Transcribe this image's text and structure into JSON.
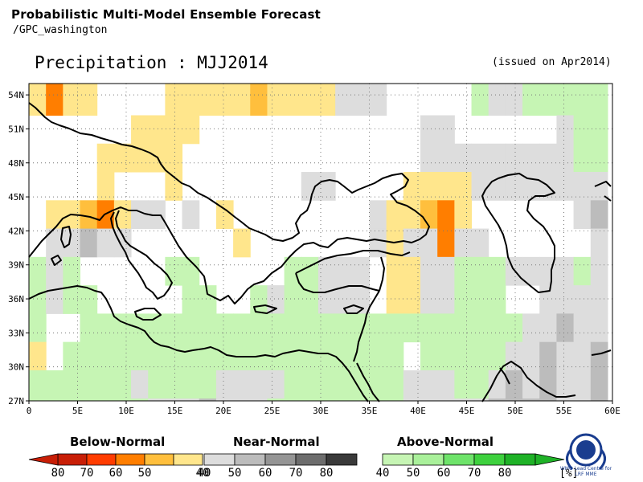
{
  "header": {
    "line1": "Probabilistic Multi-Model Ensemble Forecast",
    "line2": "/GPC_washington"
  },
  "map_title": "Precipitation : MJJ2014",
  "issued": "(issued on Apr2014)",
  "axes": {
    "lat_labels": [
      "54N",
      "51N",
      "48N",
      "45N",
      "42N",
      "39N",
      "36N",
      "33N",
      "30N",
      "27N"
    ],
    "lat_values": [
      54,
      51,
      48,
      45,
      42,
      39,
      36,
      33,
      30,
      27
    ],
    "lon_labels": [
      "0",
      "5E",
      "10E",
      "15E",
      "20E",
      "25E",
      "30E",
      "35E",
      "40E",
      "45E",
      "50E",
      "55E",
      "60E"
    ],
    "lon_values": [
      0,
      5,
      10,
      15,
      20,
      25,
      30,
      35,
      40,
      45,
      50,
      55,
      60
    ],
    "lon_range": [
      0,
      60
    ],
    "lat_range": [
      27,
      55
    ],
    "grid": "dotted"
  },
  "legend": {
    "below": {
      "title": "Below-Normal",
      "ticks": [
        "80",
        "70",
        "60",
        "50",
        "40"
      ],
      "colors": [
        "#c81e06",
        "#ff3c00",
        "#ff7e00",
        "#ffbf3d",
        "#ffe68c"
      ]
    },
    "near": {
      "title": "Near-Normal",
      "ticks": [
        "40",
        "50",
        "60",
        "70",
        "80"
      ],
      "colors": [
        "#dddddd",
        "#bcbcbc",
        "#959595",
        "#6d6d6d",
        "#3a3a3a"
      ]
    },
    "above": {
      "title": "Above-Normal",
      "ticks": [
        "40",
        "50",
        "60",
        "70",
        "80"
      ],
      "colors": [
        "#c6f5b4",
        "#a9f09a",
        "#6ee36a",
        "#3ed13e",
        "#1fb227"
      ],
      "unit": "[%]"
    }
  },
  "logo": {
    "icon": "wmo-emblem-icon",
    "text": [
      "WMO Lead Centre for",
      "LRF MME"
    ]
  },
  "chart_data": {
    "type": "heatmap",
    "title": "Precipitation : MJJ2014",
    "xlabel": "",
    "ylabel": "",
    "cell_size_deg": 2.5,
    "x_start": 0,
    "y_top": 55,
    "legend_codes": {
      "0": "no dominant category",
      "B1": "below 40",
      "B2": "below 50",
      "B3": "below 60",
      "N1": "near 40",
      "N2": "near 50",
      "N3": "near 60",
      "N4": "near 70",
      "N5": "near 80",
      "A1": "above 40"
    },
    "rows": [
      [
        "B1",
        "B3",
        "B1",
        "B1",
        "0",
        "0",
        "0",
        "0",
        "B1",
        "B1",
        "B1",
        "B1",
        "B1",
        "B2",
        "B1",
        "B1",
        "B1",
        "B1",
        "N1",
        "N1",
        "N1",
        "0",
        "0",
        "0",
        "0",
        "0",
        "A1",
        "N1",
        "N1",
        "A1",
        "A1",
        "A1",
        "A1",
        "A1"
      ],
      [
        "0",
        "0",
        "0",
        "0",
        "0",
        "0",
        "B1",
        "B1",
        "B1",
        "B1",
        "0",
        "0",
        "0",
        "0",
        "0",
        "0",
        "0",
        "0",
        "0",
        "0",
        "0",
        "0",
        "0",
        "N1",
        "N1",
        "0",
        "0",
        "0",
        "0",
        "0",
        "0",
        "N1",
        "A1",
        "A1"
      ],
      [
        "0",
        "0",
        "0",
        "0",
        "B1",
        "B1",
        "B1",
        "B1",
        "B1",
        "0",
        "0",
        "0",
        "0",
        "0",
        "0",
        "0",
        "0",
        "0",
        "0",
        "0",
        "0",
        "0",
        "0",
        "N1",
        "N1",
        "N1",
        "N1",
        "N1",
        "N1",
        "N1",
        "N1",
        "N1",
        "A1",
        "A1"
      ],
      [
        "0",
        "0",
        "0",
        "0",
        "B1",
        "0",
        "0",
        "0",
        "B1",
        "0",
        "0",
        "0",
        "0",
        "0",
        "0",
        "0",
        "N1",
        "N1",
        "0",
        "0",
        "0",
        "0",
        "B1",
        "B1",
        "B1",
        "B1",
        "N1",
        "N1",
        "N1",
        "N1",
        "N1",
        "N1",
        "N1",
        "N1"
      ],
      [
        "0",
        "B1",
        "B1",
        "B2",
        "B3",
        "B1",
        "N1",
        "N1",
        "0",
        "N1",
        "0",
        "B1",
        "0",
        "0",
        "0",
        "0",
        "0",
        "0",
        "0",
        "0",
        "N1",
        "B1",
        "B1",
        "B2",
        "B3",
        "B1",
        "0",
        "0",
        "0",
        "0",
        "0",
        "0",
        "N1",
        "N2"
      ],
      [
        "0",
        "N1",
        "N1",
        "N2",
        "N1",
        "N1",
        "0",
        "0",
        "0",
        "0",
        "0",
        "0",
        "B1",
        "0",
        "0",
        "0",
        "0",
        "0",
        "0",
        "0",
        "N1",
        "B1",
        "N1",
        "N1",
        "B3",
        "N1",
        "N1",
        "0",
        "0",
        "0",
        "0",
        "0",
        "0",
        "N1"
      ],
      [
        "A1",
        "N1",
        "A1",
        "0",
        "0",
        "0",
        "0",
        "0",
        "A1",
        "A1",
        "0",
        "0",
        "0",
        "0",
        "0",
        "A1",
        "A1",
        "N1",
        "N1",
        "N1",
        "0",
        "B1",
        "B1",
        "N1",
        "N1",
        "A1",
        "A1",
        "A1",
        "N1",
        "N1",
        "N1",
        "N1",
        "A1",
        "N1"
      ],
      [
        "A1",
        "N1",
        "A1",
        "A1",
        "0",
        "0",
        "0",
        "0",
        "0",
        "A1",
        "A1",
        "0",
        "0",
        "A1",
        "N1",
        "A1",
        "A1",
        "N1",
        "N1",
        "N1",
        "0",
        "B1",
        "B1",
        "N1",
        "N1",
        "A1",
        "A1",
        "A1",
        "0",
        "0",
        "N1",
        "N1",
        "N1",
        "N1"
      ],
      [
        "A1",
        "0",
        "0",
        "A1",
        "A1",
        "A1",
        "A1",
        "A1",
        "A1",
        "A1",
        "A1",
        "A1",
        "A1",
        "A1",
        "A1",
        "A1",
        "A1",
        "A1",
        "A1",
        "A1",
        "A1",
        "A1",
        "A1",
        "A1",
        "A1",
        "A1",
        "A1",
        "A1",
        "A1",
        "N1",
        "N1",
        "N2",
        "N1",
        "N1"
      ],
      [
        "B1",
        "0",
        "A1",
        "A1",
        "A1",
        "A1",
        "A1",
        "A1",
        "A1",
        "A1",
        "A1",
        "A1",
        "A1",
        "A1",
        "A1",
        "A1",
        "A1",
        "A1",
        "A1",
        "A1",
        "A1",
        "A1",
        "0",
        "A1",
        "A1",
        "A1",
        "A1",
        "A1",
        "N1",
        "N1",
        "N2",
        "N1",
        "N1",
        "N2"
      ],
      [
        "A1",
        "A1",
        "A1",
        "A1",
        "A1",
        "A1",
        "N1",
        "A1",
        "A1",
        "A1",
        "A1",
        "N1",
        "N1",
        "N1",
        "N1",
        "A1",
        "A1",
        "A1",
        "A1",
        "A1",
        "A1",
        "A1",
        "N1",
        "N1",
        "N1",
        "A1",
        "A1",
        "N1",
        "N2",
        "N1",
        "N2",
        "N1",
        "N1",
        "N2"
      ],
      [
        "A1",
        "A1",
        "A1",
        "A1",
        "A1",
        "A1",
        "A1",
        "N1",
        "N1",
        "N1",
        "N2",
        "N1",
        "N1",
        "N1",
        "A1",
        "A1",
        "A1",
        "A1",
        "A1",
        "A1",
        "A1",
        "A1",
        "N1",
        "N1",
        "N1",
        "N1",
        "N1",
        "N2",
        "N2",
        "N2",
        "N2",
        "N1",
        "N1",
        "N2"
      ],
      [
        "0",
        "0",
        "A1",
        "A1",
        "A1",
        "A1",
        "N1",
        "N1",
        "N1",
        "N1",
        "N2",
        "N1",
        "N1",
        "N1",
        "A1",
        "A1",
        "A1",
        "A1",
        "A1",
        "A1",
        "A1",
        "A1",
        "A1",
        "A1",
        "A1",
        "N1",
        "N1",
        "N2",
        "N2",
        "N2",
        "N3",
        "N3",
        "N1",
        "N4"
      ],
      [
        "N1",
        "N1",
        "A1",
        "A1",
        "A1",
        "A1",
        "N1",
        "A1",
        "A1",
        "N1",
        "N2",
        "N1",
        "N1",
        "A1",
        "A1",
        "A1",
        "A1",
        "A1",
        "A1",
        "A1",
        "A1",
        "A1",
        "A1",
        "A1",
        "A1",
        "A1",
        "N1",
        "N2",
        "N2",
        "N3",
        "N3",
        "N4",
        "N3",
        "N4"
      ],
      [
        "N2",
        "N1",
        "A1",
        "A1",
        "A1",
        "A1",
        "A1",
        "0",
        "A1",
        "A1",
        "N2",
        "N1",
        "N1",
        "A1",
        "A1",
        "A1",
        "A1",
        "A1",
        "A1",
        "A1",
        "A1",
        "A1",
        "A1",
        "A1",
        "A1",
        "A1",
        "N2",
        "N4",
        "N4",
        "N4",
        "N3",
        "N4",
        "N3",
        "N3"
      ],
      [
        "A1",
        "A1",
        "A1",
        "A1",
        "A1",
        "A1",
        "A1",
        "A1",
        "A1",
        "A1",
        "A1",
        "A1",
        "A1",
        "A1",
        "A1",
        "A1",
        "A1",
        "A1",
        "N1",
        "N1",
        "A1",
        "N1",
        "A1",
        "N1",
        "A1",
        "A1",
        "N1",
        "N2",
        "N5",
        "N5",
        "N5",
        "N5",
        "N4",
        "N3"
      ]
    ]
  }
}
